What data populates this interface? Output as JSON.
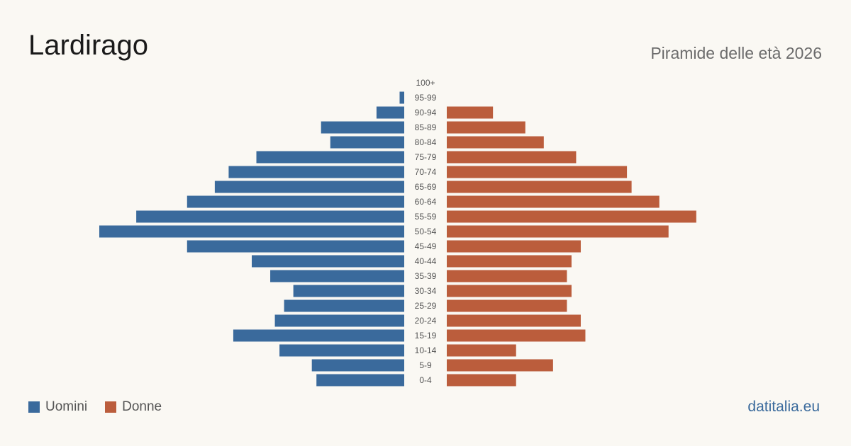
{
  "title": "Lardirago",
  "subtitle": "Piramide delle età 2026",
  "source": "datitalia.eu",
  "colors": {
    "men": "#3a6a9c",
    "women": "#bb5d3c"
  },
  "legend": {
    "men": "Uomini",
    "women": "Donne"
  },
  "chart_data": {
    "type": "bar",
    "orientation": "horizontal-pyramid",
    "categories": [
      "0-4",
      "5-9",
      "10-14",
      "15-19",
      "20-24",
      "25-29",
      "30-34",
      "35-39",
      "40-44",
      "45-49",
      "50-54",
      "55-59",
      "60-64",
      "65-69",
      "70-74",
      "75-79",
      "80-84",
      "85-89",
      "90-94",
      "95-99",
      "100+"
    ],
    "series": [
      {
        "name": "Uomini",
        "values": [
          19,
          20,
          27,
          37,
          28,
          26,
          24,
          29,
          33,
          47,
          66,
          58,
          47,
          41,
          38,
          32,
          16,
          18,
          6,
          1,
          0
        ]
      },
      {
        "name": "Donne",
        "values": [
          15,
          23,
          15,
          30,
          29,
          26,
          27,
          26,
          27,
          29,
          48,
          54,
          46,
          40,
          39,
          28,
          21,
          17,
          10,
          0,
          0
        ]
      }
    ],
    "xlim": [
      0,
      66
    ]
  }
}
